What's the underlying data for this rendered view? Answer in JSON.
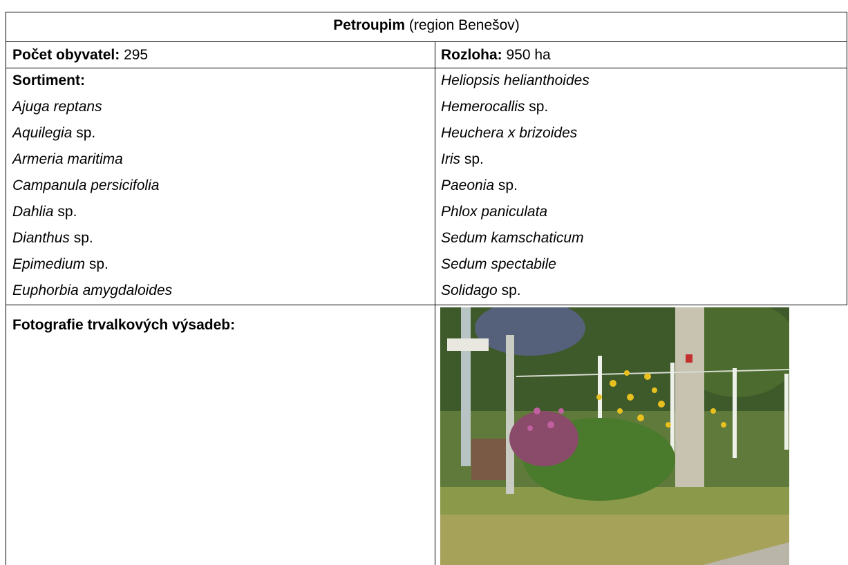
{
  "header": {
    "name": "Petroupim",
    "region": "(region Benešov)"
  },
  "info": {
    "population_label": "Počet obyvatel:",
    "population": 295,
    "area_label": "Rozloha:",
    "area": "950 ha"
  },
  "assortment": {
    "label": "Sortiment:",
    "left": [
      {
        "italic": "Ajuga reptans"
      },
      {
        "italic": "Aquilegia",
        "plain": "sp."
      },
      {
        "italic": "Armeria maritima"
      },
      {
        "italic": "Campanula persicifolia"
      },
      {
        "italic": "Dahlia",
        "plain": "sp."
      },
      {
        "italic": "Dianthus",
        "plain": "sp."
      },
      {
        "italic": "Epimedium",
        "plain": "sp."
      },
      {
        "italic": "Euphorbia amygdaloides"
      }
    ],
    "right": [
      {
        "italic": "Heliopsis helianthoides"
      },
      {
        "italic": "Hemerocallis",
        "plain": "sp."
      },
      {
        "italic": "Heuchera x brizoides"
      },
      {
        "italic": "Iris",
        "plain": "sp."
      },
      {
        "italic": "Paeonia",
        "plain": "sp."
      },
      {
        "italic": "Phlox paniculata"
      },
      {
        "italic": "Sedum kamschaticum"
      },
      {
        "italic": "Sedum spectabile"
      },
      {
        "italic": "Solidago",
        "plain": "sp."
      }
    ]
  },
  "photos": {
    "label": "Fotografie trvalkových výsadeb:"
  }
}
